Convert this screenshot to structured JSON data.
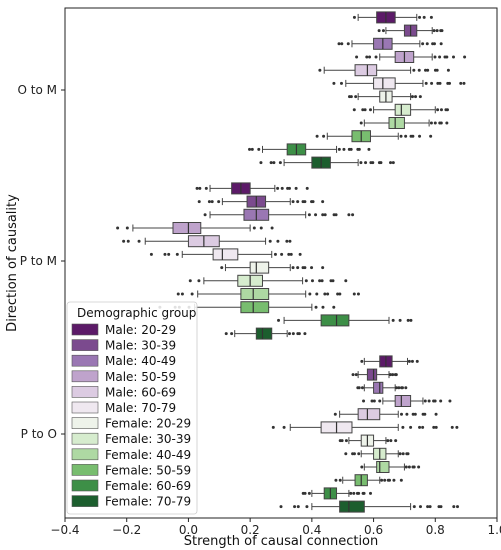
{
  "chart_data": {
    "type": "boxplot",
    "orientation": "horizontal",
    "xlabel": "Strength of causal connection",
    "ylabel": "Direction of causality",
    "xlim": [
      -0.4,
      1.0
    ],
    "xticks": [
      "−0.4",
      "−0.2",
      "0.0",
      "0.2",
      "0.4",
      "0.6",
      "0.8",
      "1.0"
    ],
    "xtick_values": [
      -0.4,
      -0.2,
      0.0,
      0.2,
      0.4,
      0.6,
      0.8,
      1.0
    ],
    "categories": [
      "O to M",
      "P to M",
      "P to O"
    ],
    "legend": {
      "title": "Demographic group",
      "position": "lower-left"
    },
    "groups": [
      {
        "name": "Male: 20-29",
        "color": "#5c1a68"
      },
      {
        "name": "Male: 30-39",
        "color": "#7b4a8e"
      },
      {
        "name": "Male: 40-49",
        "color": "#9a77b3"
      },
      {
        "name": "Male: 50-59",
        "color": "#bfa3cc"
      },
      {
        "name": "Male: 60-69",
        "color": "#dccbe2"
      },
      {
        "name": "Male: 70-79",
        "color": "#efe8f0"
      },
      {
        "name": "Female: 20-29",
        "color": "#eef3ea"
      },
      {
        "name": "Female: 30-39",
        "color": "#d6ecce"
      },
      {
        "name": "Female: 40-49",
        "color": "#aed9a3"
      },
      {
        "name": "Female: 50-59",
        "color": "#78bd6f"
      },
      {
        "name": "Female: 60-69",
        "color": "#3d8f47"
      },
      {
        "name": "Female: 70-79",
        "color": "#1c5e2e"
      }
    ],
    "boxes": {
      "O to M": [
        {
          "q1": 0.61,
          "median": 0.64,
          "q3": 0.67,
          "wlo": 0.55,
          "whi": 0.74
        },
        {
          "q1": 0.7,
          "median": 0.72,
          "q3": 0.74,
          "wlo": 0.64,
          "whi": 0.79
        },
        {
          "q1": 0.6,
          "median": 0.63,
          "q3": 0.66,
          "wlo": 0.53,
          "whi": 0.75
        },
        {
          "q1": 0.67,
          "median": 0.7,
          "q3": 0.73,
          "wlo": 0.62,
          "whi": 0.79
        },
        {
          "q1": 0.54,
          "median": 0.58,
          "q3": 0.61,
          "wlo": 0.44,
          "whi": 0.72
        },
        {
          "q1": 0.6,
          "median": 0.63,
          "q3": 0.67,
          "wlo": 0.51,
          "whi": 0.76
        },
        {
          "q1": 0.62,
          "median": 0.64,
          "q3": 0.66,
          "wlo": 0.55,
          "whi": 0.72
        },
        {
          "q1": 0.67,
          "median": 0.69,
          "q3": 0.72,
          "wlo": 0.6,
          "whi": 0.8
        },
        {
          "q1": 0.65,
          "median": 0.67,
          "q3": 0.7,
          "wlo": 0.57,
          "whi": 0.78
        },
        {
          "q1": 0.53,
          "median": 0.56,
          "q3": 0.59,
          "wlo": 0.45,
          "whi": 0.68
        },
        {
          "q1": 0.32,
          "median": 0.35,
          "q3": 0.38,
          "wlo": 0.24,
          "whi": 0.48
        },
        {
          "q1": 0.4,
          "median": 0.43,
          "q3": 0.46,
          "wlo": 0.31,
          "whi": 0.55
        }
      ],
      "P to M": [
        {
          "q1": 0.14,
          "median": 0.17,
          "q3": 0.2,
          "wlo": 0.07,
          "whi": 0.28
        },
        {
          "q1": 0.19,
          "median": 0.22,
          "q3": 0.25,
          "wlo": 0.11,
          "whi": 0.33
        },
        {
          "q1": 0.18,
          "median": 0.22,
          "q3": 0.26,
          "wlo": 0.07,
          "whi": 0.38
        },
        {
          "q1": -0.05,
          "median": 0.0,
          "q3": 0.04,
          "wlo": -0.18,
          "whi": 0.2
        },
        {
          "q1": 0.0,
          "median": 0.05,
          "q3": 0.1,
          "wlo": -0.14,
          "whi": 0.25
        },
        {
          "q1": 0.08,
          "median": 0.11,
          "q3": 0.16,
          "wlo": -0.02,
          "whi": 0.27
        },
        {
          "q1": 0.2,
          "median": 0.22,
          "q3": 0.26,
          "wlo": 0.12,
          "whi": 0.33
        },
        {
          "q1": 0.16,
          "median": 0.2,
          "q3": 0.24,
          "wlo": 0.05,
          "whi": 0.37
        },
        {
          "q1": 0.17,
          "median": 0.21,
          "q3": 0.26,
          "wlo": 0.03,
          "whi": 0.38
        },
        {
          "q1": 0.17,
          "median": 0.21,
          "q3": 0.26,
          "wlo": 0.02,
          "whi": 0.4
        },
        {
          "q1": 0.43,
          "median": 0.48,
          "q3": 0.52,
          "wlo": 0.31,
          "whi": 0.65
        },
        {
          "q1": 0.22,
          "median": 0.24,
          "q3": 0.27,
          "wlo": 0.15,
          "whi": 0.32
        }
      ],
      "P to O": [
        {
          "q1": 0.62,
          "median": 0.64,
          "q3": 0.66,
          "wlo": 0.57,
          "whi": 0.71
        },
        {
          "q1": 0.58,
          "median": 0.6,
          "q3": 0.61,
          "wlo": 0.55,
          "whi": 0.65
        },
        {
          "q1": 0.6,
          "median": 0.62,
          "q3": 0.63,
          "wlo": 0.57,
          "whi": 0.67
        },
        {
          "q1": 0.67,
          "median": 0.69,
          "q3": 0.72,
          "wlo": 0.63,
          "whi": 0.76
        },
        {
          "q1": 0.55,
          "median": 0.58,
          "q3": 0.62,
          "wlo": 0.49,
          "whi": 0.68
        },
        {
          "q1": 0.43,
          "median": 0.48,
          "q3": 0.53,
          "wlo": 0.33,
          "whi": 0.68
        },
        {
          "q1": 0.56,
          "median": 0.58,
          "q3": 0.6,
          "wlo": 0.52,
          "whi": 0.64
        },
        {
          "q1": 0.6,
          "median": 0.62,
          "q3": 0.64,
          "wlo": 0.56,
          "whi": 0.68
        },
        {
          "q1": 0.61,
          "median": 0.62,
          "q3": 0.65,
          "wlo": 0.57,
          "whi": 0.7
        },
        {
          "q1": 0.54,
          "median": 0.56,
          "q3": 0.58,
          "wlo": 0.5,
          "whi": 0.62
        },
        {
          "q1": 0.44,
          "median": 0.46,
          "q3": 0.48,
          "wlo": 0.4,
          "whi": 0.52
        },
        {
          "q1": 0.49,
          "median": 0.52,
          "q3": 0.57,
          "wlo": 0.4,
          "whi": 0.72
        }
      ]
    }
  }
}
